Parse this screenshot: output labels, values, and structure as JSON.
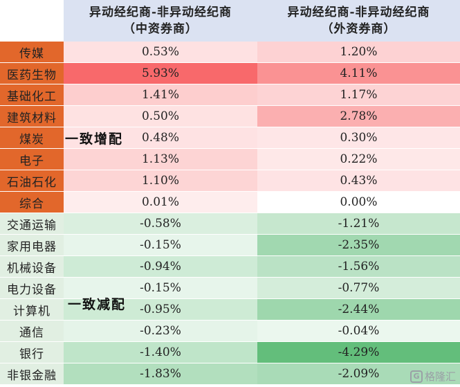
{
  "header": {
    "col1_line1": "异动经纪商-非异动经纪商",
    "col1_line2": "（中资券商）",
    "col2_line1": "异动经纪商-非异动经纪商",
    "col2_line2": "（外资券商）"
  },
  "labels": {
    "overweight": "一致增配",
    "underweight": "一致减配"
  },
  "rows": [
    {
      "name": "传媒",
      "v1": "0.53%",
      "v2": "1.20%"
    },
    {
      "name": "医药生物",
      "v1": "5.93%",
      "v2": "4.11%"
    },
    {
      "name": "基础化工",
      "v1": "1.41%",
      "v2": "1.17%"
    },
    {
      "name": "建筑材料",
      "v1": "0.50%",
      "v2": "2.78%"
    },
    {
      "name": "煤炭",
      "v1": "0.48%",
      "v2": "0.30%"
    },
    {
      "name": "电子",
      "v1": "1.13%",
      "v2": "0.22%"
    },
    {
      "name": "石油石化",
      "v1": "1.10%",
      "v2": "0.43%"
    },
    {
      "name": "综合",
      "v1": "0.01%",
      "v2": "0.00%"
    },
    {
      "name": "交通运输",
      "v1": "-0.58%",
      "v2": "-1.21%"
    },
    {
      "name": "家用电器",
      "v1": "-0.15%",
      "v2": "-2.35%"
    },
    {
      "name": "机械设备",
      "v1": "-0.94%",
      "v2": "-1.56%"
    },
    {
      "name": "电力设备",
      "v1": "-0.15%",
      "v2": "-0.77%"
    },
    {
      "name": "计算机",
      "v1": "-0.95%",
      "v2": "-2.44%"
    },
    {
      "name": "通信",
      "v1": "-0.23%",
      "v2": "-0.04%"
    },
    {
      "name": "银行",
      "v1": "-1.40%",
      "v2": "-4.29%"
    },
    {
      "name": "非银金融",
      "v1": "-1.83%",
      "v2": "-2.09%"
    }
  ],
  "watermark": {
    "text": "格隆汇"
  },
  "colors": {
    "header_bg": "#dbe2f2",
    "positive_name_bg": "#e2672b",
    "negative_name_bg": "#e1efe2",
    "positive_max": "#f8696b",
    "negative_max": "#63be7b"
  }
}
